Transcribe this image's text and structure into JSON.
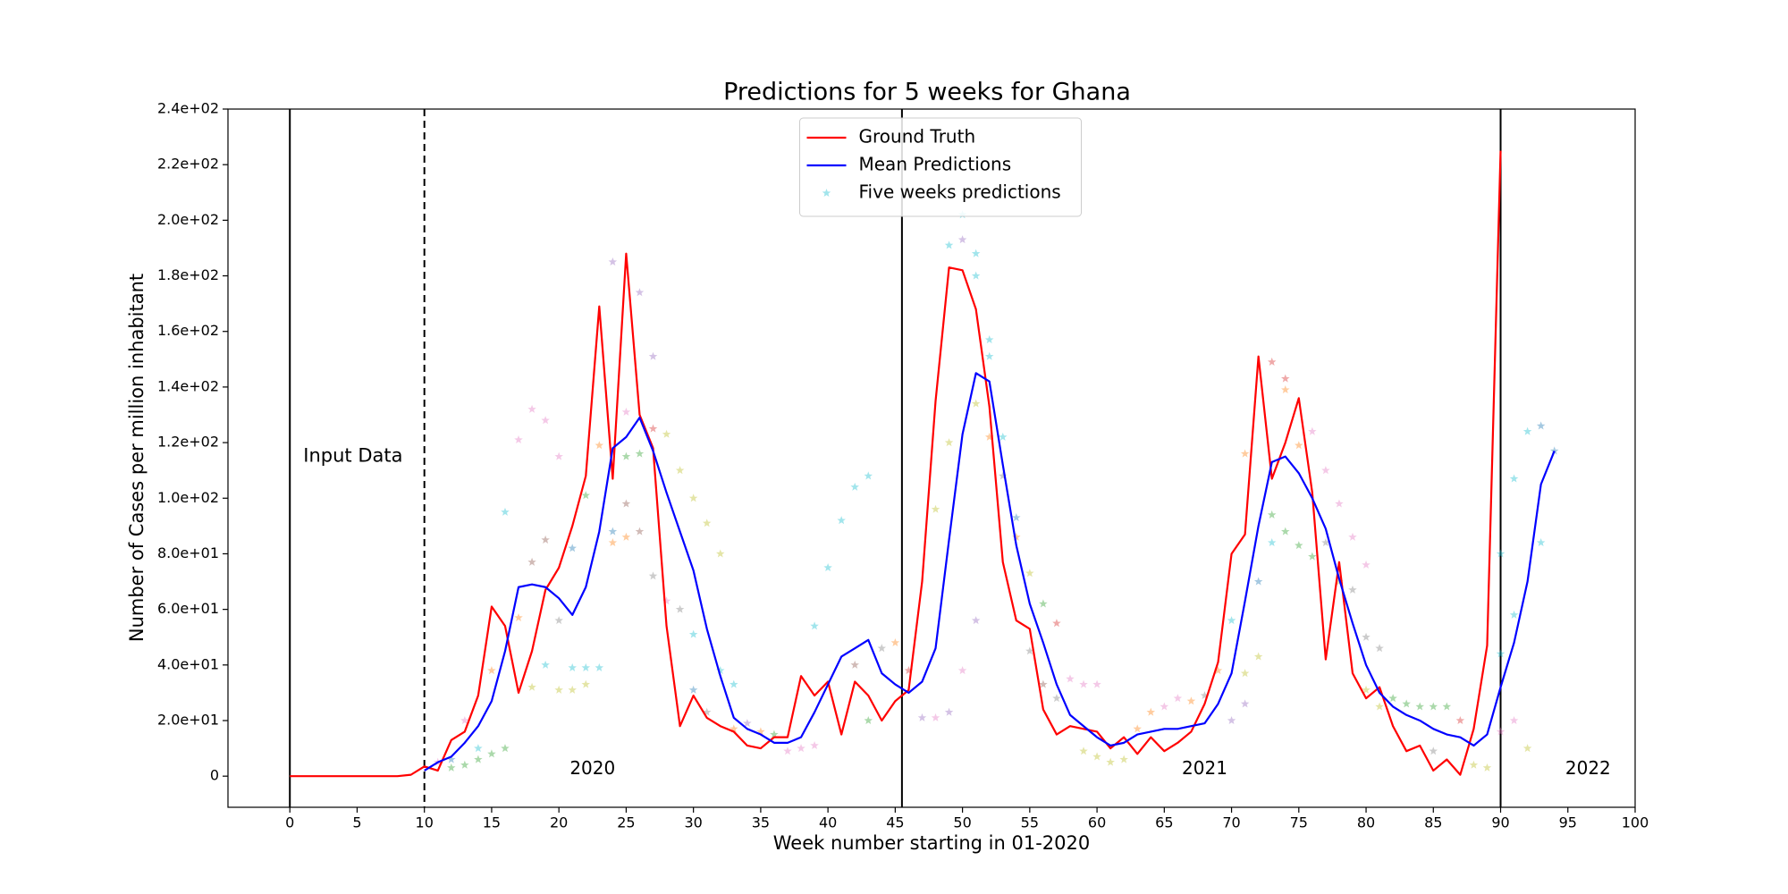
{
  "chart_data": {
    "type": "line",
    "title": "Predictions for 5 weeks for Ghana",
    "x_label": "Week number starting in 01-2020",
    "y_label": "Number of Cases per million inhabitant",
    "annotations": [
      "Input Data",
      "2020",
      "2021",
      "2022"
    ],
    "xlim": [
      -4.6,
      100
    ],
    "xticks": [
      0,
      5,
      10,
      15,
      20,
      25,
      30,
      35,
      40,
      45,
      50,
      55,
      60,
      65,
      70,
      75,
      80,
      85,
      90,
      95,
      100
    ],
    "ylim": [
      -11.2,
      240
    ],
    "yticks": [
      0,
      {
        "value": 20,
        "label": "2.0e+01"
      },
      {
        "value": 40,
        "label": "4.0e+01"
      },
      {
        "value": 60,
        "label": "6.0e+01"
      },
      {
        "value": 80,
        "label": "8.0e+01"
      },
      {
        "value": 100,
        "label": "1.0e+02"
      },
      {
        "value": 120,
        "label": "1.2e+02"
      },
      {
        "value": 140,
        "label": "1.4e+02"
      },
      {
        "value": 160,
        "label": "1.6e+02"
      },
      {
        "value": 180,
        "label": "1.8e+02"
      },
      {
        "value": 200,
        "label": "2.0e+02"
      },
      {
        "value": 220,
        "label": "2.2e+02"
      },
      {
        "value": 240,
        "label": "2.4e+02"
      }
    ],
    "grid": false,
    "legend": "upper center",
    "vlines": [
      {
        "x": 0,
        "style": "solid"
      },
      {
        "x": 10,
        "style": "dashed"
      },
      {
        "x": 45.5,
        "style": "solid"
      },
      {
        "x": 90,
        "style": "solid"
      }
    ],
    "series": [
      {
        "name": "Ground Truth",
        "type": "line",
        "color": "#ff0000",
        "x": [
          0,
          1,
          2,
          3,
          4,
          5,
          6,
          7,
          8,
          9,
          10,
          11,
          12,
          13,
          14,
          15,
          16,
          17,
          18,
          19,
          20,
          21,
          22,
          23,
          24,
          25,
          26,
          27,
          28,
          29,
          30,
          31,
          32,
          33,
          34,
          35,
          36,
          37,
          38,
          39,
          40,
          41,
          42,
          43,
          44,
          45,
          46,
          47,
          48,
          49,
          50,
          51,
          52,
          53,
          54,
          55,
          56,
          57,
          58,
          59,
          60,
          61,
          62,
          63,
          64,
          65,
          66,
          67,
          68,
          69,
          70,
          71,
          72,
          73,
          74,
          75,
          76,
          77,
          78,
          79,
          80,
          81,
          82,
          83,
          84,
          85,
          86,
          87,
          88,
          89,
          90
        ],
        "values": [
          0,
          0,
          0,
          0,
          0,
          0,
          0,
          0,
          0,
          0.5,
          3.5,
          2,
          13,
          16,
          29,
          61,
          54,
          30,
          45,
          67,
          75,
          90,
          108,
          169,
          107,
          188,
          130,
          118,
          54,
          18,
          29,
          21,
          18,
          16,
          11,
          10,
          14,
          14,
          36,
          29,
          34,
          15,
          34,
          29,
          20,
          27,
          31,
          70,
          135,
          183,
          182,
          168,
          133,
          77,
          56,
          53,
          24,
          15,
          18,
          17,
          16,
          10,
          14,
          8,
          14,
          9,
          12,
          16,
          26,
          41,
          80,
          87,
          151,
          107,
          120,
          136,
          102,
          42,
          77,
          37,
          28,
          32,
          18,
          9,
          11,
          2,
          6,
          0.5,
          17,
          47,
          225
        ]
      },
      {
        "name": "Mean Predictions",
        "type": "line",
        "color": "#0000ff",
        "x": [
          10,
          11,
          12,
          13,
          14,
          15,
          16,
          17,
          18,
          19,
          20,
          21,
          22,
          23,
          24,
          25,
          26,
          27,
          28,
          29,
          30,
          31,
          32,
          33,
          34,
          35,
          36,
          37,
          38,
          39,
          40,
          41,
          42,
          43,
          44,
          45,
          46,
          47,
          48,
          49,
          50,
          51,
          52,
          53,
          54,
          55,
          56,
          57,
          58,
          59,
          60,
          61,
          62,
          63,
          64,
          65,
          66,
          67,
          68,
          69,
          70,
          71,
          72,
          73,
          74,
          75,
          76,
          77,
          78,
          79,
          80,
          81,
          82,
          83,
          84,
          85,
          86,
          87,
          88,
          89,
          90,
          91,
          92,
          93,
          94
        ],
        "values": [
          2,
          5,
          7,
          12,
          18,
          27,
          45,
          68,
          69,
          68,
          64,
          58,
          68,
          88,
          118,
          122,
          129,
          117,
          102,
          88,
          74,
          53,
          36,
          21,
          17,
          15,
          12,
          12,
          14,
          23,
          33,
          43,
          46,
          49,
          37,
          33,
          30,
          34,
          46,
          85,
          123,
          145,
          142,
          112,
          83,
          62,
          48,
          33,
          22,
          18,
          14,
          11,
          12,
          15,
          16,
          17,
          17,
          18,
          19,
          26,
          37,
          63,
          90,
          113,
          115,
          109,
          100,
          89,
          71,
          55,
          40,
          30,
          25,
          22,
          20,
          17,
          15,
          14,
          11,
          15,
          32,
          48,
          70,
          105,
          117
        ]
      },
      {
        "name": "Five weeks predictions",
        "type": "scatter",
        "color": "#17becf",
        "x": [
          11,
          12,
          12,
          13,
          13,
          14,
          14,
          15,
          15,
          16,
          16,
          17,
          17,
          18,
          18,
          18,
          19,
          19,
          19,
          20,
          20,
          20,
          21,
          21,
          21,
          22,
          22,
          22,
          23,
          23,
          24,
          24,
          24,
          25,
          25,
          25,
          25,
          26,
          26,
          26,
          27,
          27,
          27,
          28,
          28,
          29,
          29,
          30,
          30,
          30,
          31,
          31,
          32,
          32,
          33,
          33,
          34,
          35,
          36,
          37,
          38,
          39,
          39,
          40,
          41,
          42,
          43,
          42,
          43,
          44,
          45,
          46,
          47,
          48,
          48,
          49,
          49,
          49,
          50,
          50,
          50,
          51,
          51,
          51,
          51,
          52,
          52,
          52,
          53,
          53,
          54,
          54,
          55,
          55,
          56,
          56,
          57,
          57,
          58,
          59,
          59,
          60,
          60,
          61,
          62,
          63,
          64,
          65,
          66,
          67,
          68,
          69,
          70,
          70,
          71,
          71,
          71,
          72,
          72,
          73,
          73,
          73,
          74,
          74,
          74,
          75,
          75,
          76,
          76,
          77,
          77,
          78,
          78,
          79,
          79,
          80,
          80,
          80,
          81,
          81,
          82,
          83,
          84,
          85,
          86,
          85,
          87,
          88,
          89,
          90,
          90,
          90,
          91,
          91,
          91,
          92,
          92,
          93,
          93,
          94
        ],
        "values": [
          5,
          6,
          3,
          4,
          20,
          6,
          10,
          8,
          38,
          10,
          95,
          121,
          57,
          132,
          77,
          32,
          128,
          85,
          40,
          115,
          56,
          31,
          82,
          39,
          31,
          101,
          39,
          33,
          119,
          39,
          185,
          88,
          84,
          131,
          115,
          98,
          86,
          174,
          116,
          88,
          151,
          125,
          72,
          123,
          63,
          110,
          60,
          100,
          51,
          31,
          91,
          23,
          80,
          38,
          33,
          17,
          19,
          16,
          15,
          9,
          10,
          11,
          54,
          75,
          92,
          104,
          108,
          40,
          20,
          46,
          48,
          38,
          21,
          96,
          21,
          191,
          120,
          23,
          202,
          193,
          38,
          188,
          180,
          134,
          56,
          157,
          151,
          122,
          122,
          108,
          93,
          86,
          73,
          45,
          62,
          33,
          55,
          28,
          35,
          33,
          9,
          33,
          7,
          5,
          6,
          17,
          23,
          25,
          28,
          27,
          29,
          38,
          56,
          20,
          37,
          26,
          116,
          43,
          70,
          149,
          94,
          84,
          143,
          139,
          88,
          119,
          83,
          124,
          79,
          110,
          84,
          98,
          70,
          86,
          67,
          76,
          50,
          31,
          46,
          25,
          28,
          26,
          25,
          25,
          25,
          9,
          20,
          4,
          3,
          80,
          44,
          16,
          107,
          58,
          20,
          124,
          10,
          126,
          84,
          117
        ],
        "colors": [
          "#e377c2",
          "#1f77b4",
          "#2ca02c",
          "#2ca02c",
          "#e377c2",
          "#2ca02c",
          "#17becf",
          "#2ca02c",
          "#ff7f0e",
          "#2ca02c",
          "#17becf",
          "#e377c2",
          "#ff7f0e",
          "#e377c2",
          "#8c564b",
          "#bcbd22",
          "#e377c2",
          "#8c564b",
          "#17becf",
          "#e377c2",
          "#7f7f7f",
          "#bcbd22",
          "#1f77b4",
          "#17becf",
          "#bcbd22",
          "#2ca02c",
          "#17becf",
          "#bcbd22",
          "#ff7f0e",
          "#17becf",
          "#9467bd",
          "#1f77b4",
          "#ff7f0e",
          "#e377c2",
          "#2ca02c",
          "#8c564b",
          "#ff7f0e",
          "#9467bd",
          "#2ca02c",
          "#8c564b",
          "#9467bd",
          "#d62728",
          "#7f7f7f",
          "#bcbd22",
          "#e377c2",
          "#bcbd22",
          "#7f7f7f",
          "#bcbd22",
          "#17becf",
          "#1f77b4",
          "#bcbd22",
          "#7f7f7f",
          "#bcbd22",
          "#17becf",
          "#17becf",
          "#ff7f0e",
          "#9467bd",
          "#ff7f0e",
          "#2ca02c",
          "#e377c2",
          "#e377c2",
          "#e377c2",
          "#17becf",
          "#17becf",
          "#17becf",
          "#17becf",
          "#17becf",
          "#8c564b",
          "#2ca02c",
          "#7f7f7f",
          "#ff7f0e",
          "#d62728",
          "#9467bd",
          "#bcbd22",
          "#e377c2",
          "#17becf",
          "#bcbd22",
          "#9467bd",
          "#17becf",
          "#9467bd",
          "#e377c2",
          "#17becf",
          "#17becf",
          "#bcbd22",
          "#9467bd",
          "#17becf",
          "#17becf",
          "#ff7f0e",
          "#17becf",
          "#7f7f7f",
          "#1f77b4",
          "#ff7f0e",
          "#bcbd22",
          "#7f7f7f",
          "#2ca02c",
          "#8c564b",
          "#d62728",
          "#7f7f7f",
          "#e377c2",
          "#e377c2",
          "#bcbd22",
          "#e377c2",
          "#bcbd22",
          "#bcbd22",
          "#bcbd22",
          "#ff7f0e",
          "#ff7f0e",
          "#e377c2",
          "#e377c2",
          "#ff7f0e",
          "#7f7f7f",
          "#ff7f0e",
          "#17becf",
          "#9467bd",
          "#bcbd22",
          "#9467bd",
          "#ff7f0e",
          "#bcbd22",
          "#1f77b4",
          "#d62728",
          "#2ca02c",
          "#17becf",
          "#d62728",
          "#ff7f0e",
          "#2ca02c",
          "#ff7f0e",
          "#2ca02c",
          "#e377c2",
          "#2ca02c",
          "#e377c2",
          "#7f7f7f",
          "#e377c2",
          "#bcbd22",
          "#e377c2",
          "#7f7f7f",
          "#e377c2",
          "#7f7f7f",
          "#bcbd22",
          "#7f7f7f",
          "#bcbd22",
          "#2ca02c",
          "#2ca02c",
          "#2ca02c",
          "#2ca02c",
          "#2ca02c",
          "#7f7f7f",
          "#d62728",
          "#bcbd22",
          "#bcbd22",
          "#17becf",
          "#17becf",
          "#e377c2",
          "#17becf",
          "#17becf",
          "#e377c2",
          "#17becf",
          "#bcbd22",
          "#1f77b4",
          "#17becf",
          "#1f77b4"
        ]
      }
    ]
  }
}
